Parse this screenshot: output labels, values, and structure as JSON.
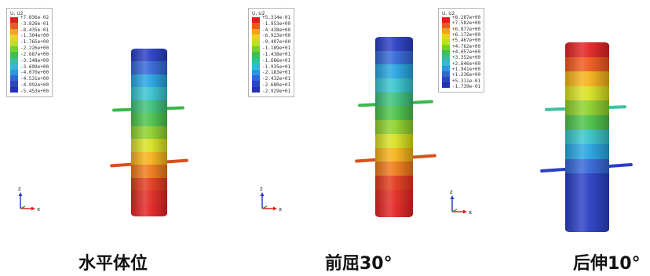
{
  "panels": [
    {
      "caption": "水平体位",
      "legend_title": "U, U2",
      "legend_values": [
        "+7.836e-02",
        "-3.826e-01",
        "-8.435e-01",
        "-1.304e+00",
        "-1.765e+00",
        "-2.226e+00",
        "-2.687e+00",
        "-3.148e+00",
        "-3.609e+00",
        "-4.070e+00",
        "-4.531e+00",
        "-4.992e+00",
        "-5.453e+00"
      ],
      "cylinder_colors": [
        "#2a3fc4",
        "#3468d6",
        "#27a4e0",
        "#38c3cf",
        "#3ec07a",
        "#4cc24a",
        "#8ed02c",
        "#d8e022",
        "#f5b21a",
        "#ee7a1a",
        "#e23a1e",
        "#e02a22",
        "#e22424"
      ]
    },
    {
      "caption": "前屈30°",
      "legend_title": "U, U2",
      "legend_values": [
        "+5.314e-01",
        "-1.953e+00",
        "-4.438e+00",
        "-6.923e+00",
        "-9.407e+00",
        "-1.189e+01",
        "-1.438e+01",
        "-1.686e+01",
        "-1.935e+01",
        "-2.183e+01",
        "-2.432e+01",
        "-2.680e+01",
        "-2.929e+01"
      ],
      "cylinder_colors": [
        "#2a3fc4",
        "#3468d6",
        "#27a4e0",
        "#38c3cf",
        "#3ec07a",
        "#4cc24a",
        "#8ed02c",
        "#d8e022",
        "#f5b21a",
        "#ee7a1a",
        "#e23a1e",
        "#e02a22",
        "#e22424"
      ]
    },
    {
      "caption": "后伸10°",
      "legend_title": "U, U2",
      "legend_values": [
        "+8.287e+00",
        "+7.582e+00",
        "+6.877e+00",
        "+6.172e+00",
        "+5.467e+00",
        "+4.762e+00",
        "+4.057e+00",
        "+3.352e+00",
        "+2.646e+00",
        "+1.941e+00",
        "+1.236e+00",
        "+5.311e-01",
        "-1.739e-01"
      ],
      "cylinder_colors": [
        "#e22424",
        "#ee5a1c",
        "#f5b21a",
        "#d8e022",
        "#8ed02c",
        "#4cc24a",
        "#38c3cf",
        "#27a4e0",
        "#3468d6",
        "#2a3fc4",
        "#2a3fc4",
        "#2a3fc4",
        "#2a3fc4"
      ]
    }
  ],
  "legend_colors": [
    "#e01e1e",
    "#ee5a1c",
    "#f5a21a",
    "#e8d420",
    "#bce022",
    "#78d02a",
    "#3ec050",
    "#34c09a",
    "#30bcd0",
    "#2a98e0",
    "#2d6ad8",
    "#2c44c8",
    "#2432b8"
  ],
  "axes": {
    "z": "z",
    "y": "y",
    "x": "x"
  }
}
